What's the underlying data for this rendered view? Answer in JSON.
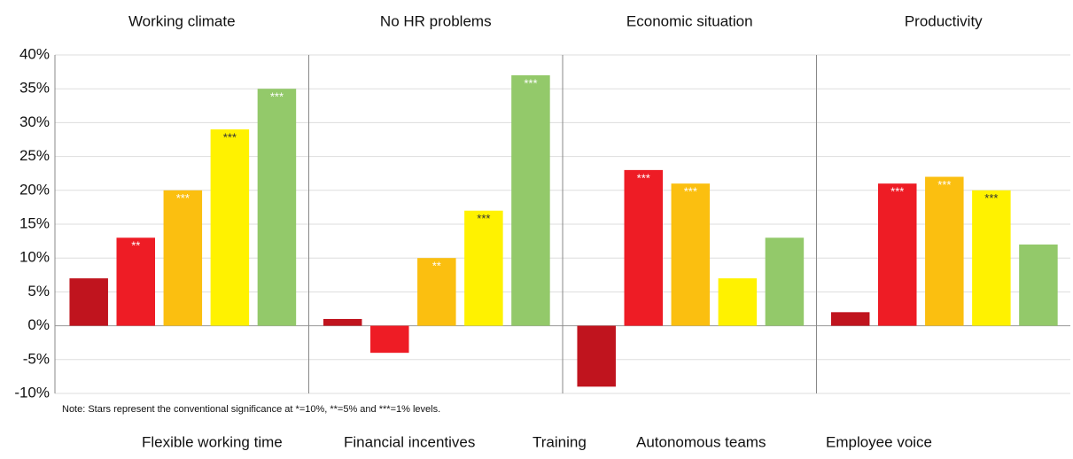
{
  "chart_data": {
    "type": "bar",
    "categories": [
      "Working climate",
      "No HR problems",
      "Economic situation",
      "Productivity"
    ],
    "series": [
      {
        "name": "Flexible working time",
        "color": "#c0141e",
        "values": [
          7,
          1,
          -9,
          2
        ],
        "significance": [
          null,
          null,
          null,
          null
        ],
        "star_color": "#ffffff"
      },
      {
        "name": "Financial incentives",
        "color": "#ee1c25",
        "values": [
          13,
          -4,
          23,
          21
        ],
        "significance": [
          "**",
          null,
          "***",
          "***"
        ],
        "star_color": "#ffffff"
      },
      {
        "name": "Training",
        "color": "#fbbf10",
        "values": [
          20,
          10,
          21,
          22
        ],
        "significance": [
          "***",
          "**",
          "***",
          "***"
        ],
        "star_color": "#ffffff"
      },
      {
        "name": "Autonomous teams",
        "color": "#fff200",
        "values": [
          29,
          17,
          7,
          20
        ],
        "significance": [
          "***",
          "***",
          null,
          "***"
        ],
        "star_color": "#333333"
      },
      {
        "name": "Employee voice",
        "color": "#93c96a",
        "values": [
          35,
          37,
          13,
          12
        ],
        "significance": [
          "***",
          "***",
          null,
          null
        ],
        "star_color": "#ffffff"
      }
    ],
    "ylim": [
      -10,
      40
    ],
    "yticks": [
      {
        "value": -10,
        "label": "-10%"
      },
      {
        "value": -5,
        "label": "-5%"
      },
      {
        "value": 0,
        "label": "0%"
      },
      {
        "value": 5,
        "label": "5%"
      },
      {
        "value": 10,
        "label": "10%"
      },
      {
        "value": 15,
        "label": "15%"
      },
      {
        "value": 20,
        "label": "20%"
      },
      {
        "value": 25,
        "label": "25%"
      },
      {
        "value": 30,
        "label": "30%"
      },
      {
        "value": 35,
        "label": "35%"
      },
      {
        "value": 40,
        "label": "40%"
      }
    ],
    "grid": true,
    "note": "Note: Stars represent the conventional significance at *=10%, **=5% and ***=1% levels."
  }
}
